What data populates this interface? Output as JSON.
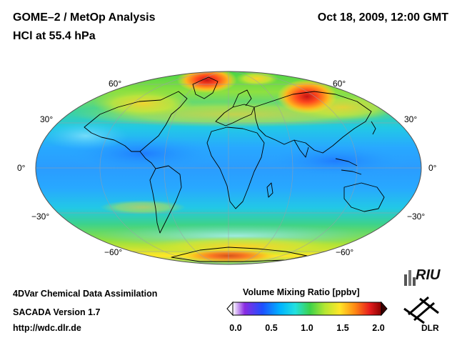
{
  "header": {
    "title": "GOME–2 / MetOp Analysis",
    "subtitle": "HCl at 55.4 hPa",
    "date": "Oct 18, 2009, 12:00 GMT"
  },
  "map": {
    "projection": "Mollweide",
    "variable": "HCl volume mixing ratio",
    "lat_labels_left": [
      "60°",
      "30°",
      "0°",
      "−30°",
      "−60°"
    ],
    "lat_labels_right": [
      "60°",
      "30°",
      "0°",
      "−30°",
      "−60°"
    ]
  },
  "colorbar": {
    "title": "Volume Mixing Ratio [ppbv]",
    "ticks": [
      "0.0",
      "0.5",
      "1.0",
      "1.5",
      "2.0"
    ],
    "range": [
      0.0,
      2.0
    ],
    "colors": [
      "#ffffff",
      "#8a2be2",
      "#1e50ff",
      "#00b4ff",
      "#22e0e0",
      "#3cd24a",
      "#b4e632",
      "#ffe628",
      "#ff8c14",
      "#e81e1e",
      "#8b0000"
    ]
  },
  "footer": {
    "line1": "4DVar Chemical Data Assimilation",
    "line2": "SACADA Version 1.7",
    "line3": "http://wdc.dlr.de"
  },
  "logos": {
    "riu": "RIU",
    "dlr": "DLR"
  }
}
